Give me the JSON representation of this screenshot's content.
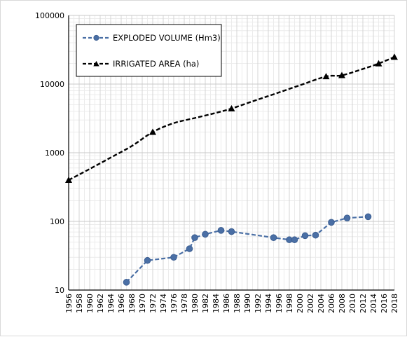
{
  "chart_data": {
    "type": "line",
    "title": "",
    "xlabel": "",
    "ylabel": "",
    "y_scale": "log",
    "ylim": [
      10,
      100000
    ],
    "xlim": [
      1956,
      2018
    ],
    "x_ticks": [
      1956,
      1958,
      1960,
      1962,
      1964,
      1966,
      1968,
      1970,
      1972,
      1974,
      1976,
      1978,
      1980,
      1982,
      1984,
      1986,
      1988,
      1990,
      1992,
      1994,
      1996,
      1998,
      2000,
      2002,
      2004,
      2006,
      2008,
      2010,
      2012,
      2014,
      2016,
      2018
    ],
    "y_ticks": [
      10,
      100,
      1000,
      10000,
      100000
    ],
    "grid": true,
    "legend_position": "top-left",
    "series": [
      {
        "name": "EXPLODED VOLUME (Hm3)",
        "color": "#4a6fa5",
        "line_style": "dashed",
        "marker": "circle",
        "x": [
          1967,
          1971,
          1976,
          1979,
          1980,
          1982,
          1985,
          1987,
          1995,
          1998,
          1999,
          2001,
          2003,
          2006,
          2009,
          2013
        ],
        "y": [
          13,
          27,
          30,
          40,
          58,
          65,
          74,
          71,
          58,
          54,
          54,
          62,
          63,
          97,
          112,
          117
        ]
      },
      {
        "name": "IRRIGATED AREA (ha)",
        "color": "#000000",
        "line_style": "dashed",
        "marker": "triangle",
        "x": [
          1956,
          1972,
          1987,
          2005,
          2008,
          2015,
          2018
        ],
        "y": [
          400,
          2000,
          4400,
          12900,
          13400,
          19900,
          24800
        ],
        "curve_points": [
          [
            1956,
            400
          ],
          [
            1960,
            580
          ],
          [
            1964,
            850
          ],
          [
            1968,
            1250
          ],
          [
            1972,
            2000
          ],
          [
            1976,
            2700
          ],
          [
            1980,
            3200
          ],
          [
            1984,
            3800
          ],
          [
            1987,
            4400
          ],
          [
            1991,
            5600
          ],
          [
            1995,
            7100
          ],
          [
            2000,
            9600
          ],
          [
            2005,
            12900
          ],
          [
            2008,
            13400
          ],
          [
            2012,
            16600
          ],
          [
            2015,
            19900
          ],
          [
            2018,
            24800
          ]
        ]
      }
    ]
  }
}
